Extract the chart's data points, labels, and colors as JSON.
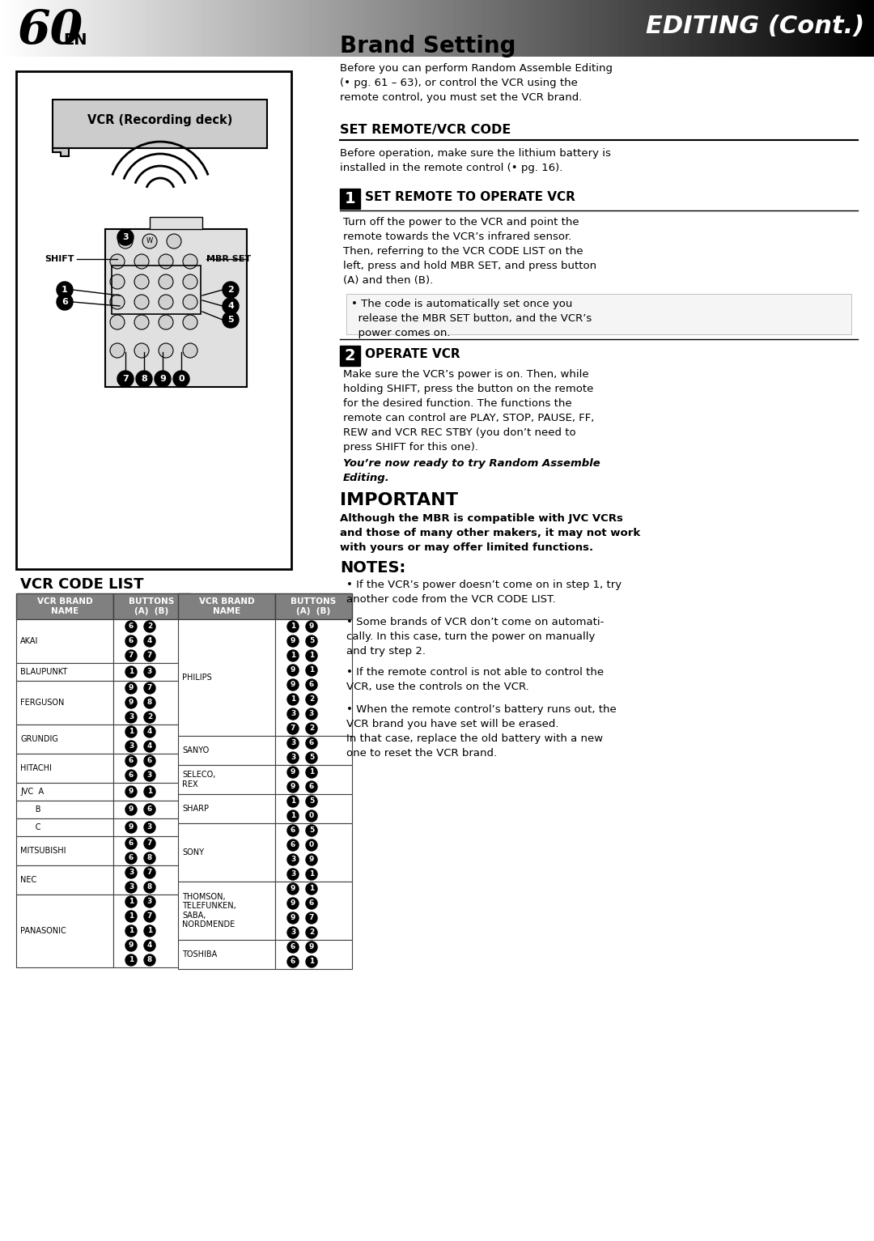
{
  "page_number": "60",
  "page_lang": "EN",
  "header_title": "EDITING (Cont.)",
  "section_title": "Brand Setting",
  "section_intro": "Before you can perform Random Assemble Editing\n(• pg. 61 – 63), or control the VCR using the\nremote control, you must set the VCR brand.",
  "set_remote_title": "SET REMOTE/VCR CODE",
  "set_remote_intro": "Before operation, make sure the lithium battery is\ninstalled in the remote control (• pg. 16).",
  "step1_num": "1",
  "step1_title": "SET REMOTE TO OPERATE VCR",
  "step1_text": "Turn off the power to the VCR and point the\nremote towards the VCR’s infrared sensor.\nThen, referring to the VCR CODE LIST on the\nleft, press and hold MBR SET, and press button\n(A) and then (B).",
  "step1_note": "• The code is automatically set once you\n  release the MBR SET button, and the VCR’s\n  power comes on.",
  "step2_num": "2",
  "step2_title": "OPERATE VCR",
  "step2_text": "Make sure the VCR’s power is on. Then, while\nholding SHIFT, press the button on the remote\nfor the desired function. The functions the\nremote can control are PLAY, STOP, PAUSE, FF,\nREW and VCR REC STBY (you don’t need to\npress SHIFT for this one).",
  "step2_italic": "You’re now ready to try Random Assemble\nEditing.",
  "important_title": "IMPORTANT",
  "important_text": "Although the MBR is compatible with JVC VCRs\nand those of many other makers, it may not work\nwith yours or may offer limited functions.",
  "notes_title": "NOTES:",
  "notes": [
    "If the VCR’s power doesn’t come on in step 1, try\nanother code from the VCR CODE LIST.",
    "Some brands of VCR don’t come on automati-\ncally. In this case, turn the power on manually\nand try step 2.",
    "If the remote control is not able to control the\nVCR, use the controls on the VCR.",
    "When the remote control’s battery runs out, the\nVCR brand you have set will be erased.\nIn that case, replace the old battery with a new\none to reset the VCR brand."
  ],
  "vcr_code_list_title": "VCR CODE LIST",
  "table_col1_header": [
    "VCR BRAND",
    "NAME"
  ],
  "table_col2_header": [
    "BUTTONS",
    "(A)  (B)"
  ],
  "left_brands": [
    {
      "name": "AKAI",
      "codes": [
        [
          "6",
          "2"
        ],
        [
          "6",
          "4"
        ],
        [
          "7",
          "7"
        ]
      ]
    },
    {
      "name": "BLAUPUNKT",
      "codes": [
        [
          "1",
          "3"
        ]
      ]
    },
    {
      "name": "FERGUSON",
      "codes": [
        [
          "9",
          "7"
        ],
        [
          "9",
          "8"
        ],
        [
          "3",
          "2"
        ]
      ]
    },
    {
      "name": "GRUNDIG",
      "codes": [
        [
          "1",
          "4"
        ],
        [
          "3",
          "4"
        ]
      ]
    },
    {
      "name": "HITACHI",
      "codes": [
        [
          "6",
          "6"
        ],
        [
          "6",
          "3"
        ]
      ]
    },
    {
      "name": "JVC  A",
      "codes": [
        [
          "9",
          "1"
        ]
      ]
    },
    {
      "name": "      B",
      "codes": [
        [
          "9",
          "6"
        ]
      ]
    },
    {
      "name": "      C",
      "codes": [
        [
          "9",
          "3"
        ]
      ]
    },
    {
      "name": "MITSUBISHI",
      "codes": [
        [
          "6",
          "7"
        ],
        [
          "6",
          "8"
        ]
      ]
    },
    {
      "name": "NEC",
      "codes": [
        [
          "3",
          "7"
        ],
        [
          "3",
          "8"
        ]
      ]
    },
    {
      "name": "PANASONIC",
      "codes": [
        [
          "1",
          "3"
        ],
        [
          "1",
          "7"
        ],
        [
          "1",
          "1"
        ],
        [
          "9",
          "4"
        ],
        [
          "1",
          "8"
        ]
      ]
    }
  ],
  "right_brands": [
    {
      "name": "PHILIPS",
      "codes": [
        [
          "1",
          "9"
        ],
        [
          "9",
          "5"
        ],
        [
          "1",
          "1"
        ],
        [
          "9",
          "1"
        ],
        [
          "9",
          "6"
        ],
        [
          "1",
          "2"
        ],
        [
          "3",
          "3"
        ],
        [
          "7",
          "2"
        ]
      ]
    },
    {
      "name": "SANYO",
      "codes": [
        [
          "3",
          "6"
        ],
        [
          "3",
          "5"
        ]
      ]
    },
    {
      "name": "SELECO,\nREX",
      "codes": [
        [
          "9",
          "1"
        ],
        [
          "9",
          "6"
        ]
      ]
    },
    {
      "name": "SHARP",
      "codes": [
        [
          "1",
          "5"
        ],
        [
          "1",
          "0"
        ]
      ]
    },
    {
      "name": "SONY",
      "codes": [
        [
          "6",
          "5"
        ],
        [
          "6",
          "0"
        ],
        [
          "3",
          "9"
        ],
        [
          "3",
          "1"
        ]
      ]
    },
    {
      "name": "THOMSON,\nTELEFUNKEN,\nSABA,\nNORDMENDE",
      "codes": [
        [
          "9",
          "1"
        ],
        [
          "9",
          "6"
        ],
        [
          "9",
          "7"
        ],
        [
          "3",
          "2"
        ]
      ]
    },
    {
      "name": "TOSHIBA",
      "codes": [
        [
          "6",
          "9"
        ],
        [
          "6",
          "1"
        ]
      ]
    }
  ],
  "bg_color": "#ffffff",
  "header_bg_start": "#e0e0e0",
  "header_bg_end": "#222222",
  "table_header_bg": "#808080",
  "table_header_text": "#ffffff",
  "table_border": "#404040",
  "bullet_bg": "#000000",
  "bullet_text": "#ffffff",
  "step_num_bg": "#000000",
  "step_num_text": "#ffffff"
}
